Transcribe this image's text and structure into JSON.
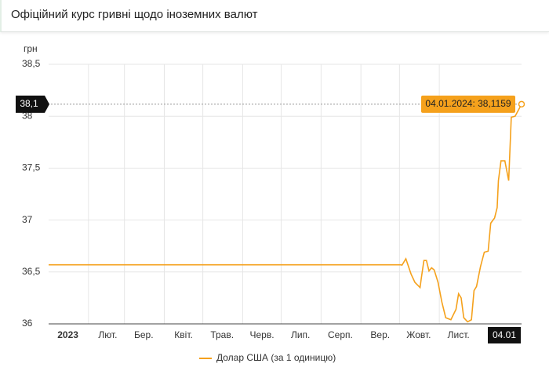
{
  "chart_data": {
    "type": "line",
    "title": "Офіційний курс гривні щодо іноземних валют",
    "y_label": "грн",
    "x": [
      "01.01.2023",
      "02.10.2023",
      "03.10.2023",
      "06.10.2023",
      "10.10.2023",
      "13.10.2023",
      "17.10.2023",
      "18.10.2023",
      "20.10.2023",
      "22.10.2023",
      "24.10.2023",
      "26.10.2023",
      "28.10.2023",
      "31.10.2023",
      "03.11.2023",
      "06.11.2023",
      "10.11.2023",
      "14.11.2023",
      "16.11.2023",
      "18.11.2023",
      "20.11.2023",
      "23.11.2023",
      "26.11.2023",
      "28.11.2023",
      "30.11.2023",
      "03.12.2023",
      "06.12.2023",
      "09.12.2023",
      "11.12.2023",
      "14.12.2023",
      "16.12.2023",
      "17.12.2023",
      "19.12.2023",
      "22.12.2023",
      "25.12.2023",
      "27.12.2023",
      "30.12.2023",
      "04.01.2024"
    ],
    "series": [
      {
        "name": "Долар США (за 1 одиницю)",
        "color": "#f5a11c",
        "values": [
          36.5686,
          36.5686,
          36.566,
          36.627,
          36.48,
          36.4,
          36.35,
          36.44,
          36.61,
          36.61,
          36.51,
          36.54,
          36.52,
          36.4,
          36.21,
          36.06,
          36.04,
          36.14,
          36.29,
          36.25,
          36.06,
          36.02,
          36.04,
          36.32,
          36.36,
          36.55,
          36.69,
          36.7,
          36.97,
          37.02,
          37.12,
          37.38,
          37.57,
          37.57,
          37.38,
          37.99,
          38.0,
          38.1159
        ]
      }
    ],
    "xlim": [
      "01.01.2023",
      "04.01.2024"
    ],
    "xticks": [
      {
        "value": "01.01.2023",
        "label": "2023"
      },
      {
        "value": "01.02.2023",
        "label": "Лют."
      },
      {
        "value": "01.03.2023",
        "label": "Бер."
      },
      {
        "value": "01.04.2023",
        "label": "Квіт."
      },
      {
        "value": "01.05.2023",
        "label": "Трав."
      },
      {
        "value": "01.06.2023",
        "label": "Черв."
      },
      {
        "value": "01.07.2023",
        "label": "Лип."
      },
      {
        "value": "01.08.2023",
        "label": "Серп."
      },
      {
        "value": "01.09.2023",
        "label": "Вер."
      },
      {
        "value": "01.10.2023",
        "label": "Жовт."
      },
      {
        "value": "01.11.2023",
        "label": "Лист."
      }
    ],
    "ylim": [
      36,
      38.5
    ],
    "yticks": [
      36,
      {
        "value": 36.5,
        "label": "36,5"
      },
      37,
      {
        "value": 37.5,
        "label": "37,5"
      },
      38,
      {
        "value": 38.5,
        "label": "38,5"
      }
    ],
    "grid": true,
    "crosshair_y_label": "38,1",
    "crosshair_x_label": "04.01",
    "tooltip": "04.01.2024: 38,1159"
  }
}
